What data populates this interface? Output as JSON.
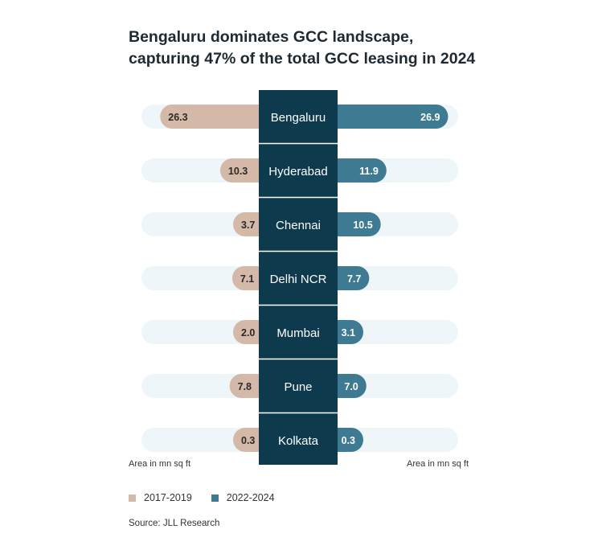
{
  "title": {
    "line1": "Bengaluru dominates GCC landscape,",
    "line2": "capturing 47% of the total GCC leasing in 2024"
  },
  "colors": {
    "left_bar": "#d4b8a8",
    "right_bar": "#3e7a91",
    "track": "#eef6f9",
    "center": "#0e3a4d"
  },
  "chart_data": {
    "type": "bar",
    "subtype": "butterfly",
    "categories": [
      "Bengaluru",
      "Hyderabad",
      "Chennai",
      "Delhi NCR",
      "Mumbai",
      "Pune",
      "Kolkata"
    ],
    "series": [
      {
        "name": "2017-2019",
        "values": [
          26.3,
          10.3,
          3.7,
          7.1,
          2.0,
          7.8,
          0.3
        ]
      },
      {
        "name": "2022-2024",
        "values": [
          26.9,
          11.9,
          10.5,
          7.7,
          3.1,
          7.0,
          0.3
        ]
      }
    ],
    "xlabel_left": "Area in mn sq ft",
    "xlabel_right": "Area in mn sq ft",
    "xlim": [
      0,
      27
    ]
  },
  "legend": {
    "items": [
      "2017-2019",
      "2022-2024"
    ],
    "position": "bottom-left"
  },
  "source": "Source: JLL Research"
}
